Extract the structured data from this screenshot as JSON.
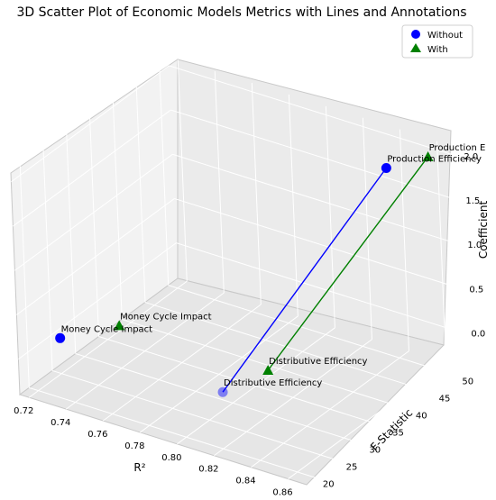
{
  "chart_data": {
    "type": "scatter",
    "title": "3D Scatter Plot of Economic Models Metrics with Lines and Annotations",
    "xlabel": "R²",
    "ylabel": "F-Statistic",
    "zlabel": "Coefficient",
    "xlim": [
      0.715,
      0.87
    ],
    "ylim": [
      18,
      52
    ],
    "zlim": [
      -0.4,
      2.1
    ],
    "x_ticks": [
      "0.72",
      "0.74",
      "0.76",
      "0.78",
      "0.80",
      "0.82",
      "0.84",
      "0.86"
    ],
    "y_ticks": [
      "20",
      "25",
      "30",
      "35",
      "40",
      "45",
      "50"
    ],
    "z_ticks": [
      "0.0",
      "0.5",
      "1.0",
      "1.5",
      "2.0"
    ],
    "grid": true,
    "legend_position": "top-right",
    "series": [
      {
        "name": "Without",
        "color": "#0000ff",
        "marker": "circle",
        "points": [
          {
            "label": "Money Cycle Impact",
            "x": 0.72,
            "y": 25,
            "z": 0.0
          },
          {
            "label": "Distributive Efficiency",
            "x": 0.8,
            "y": 28,
            "z": -0.2
          },
          {
            "label": "Production Efficiency",
            "x": 0.85,
            "y": 45,
            "z": 2.0
          }
        ],
        "lines": [
          [
            1,
            2
          ]
        ]
      },
      {
        "name": "With",
        "color": "#008000",
        "marker": "triangle",
        "points": [
          {
            "label": "Money Cycle Impact",
            "x": 0.75,
            "y": 26,
            "z": 0.3
          },
          {
            "label": "Distributive Efficiency",
            "x": 0.82,
            "y": 30,
            "z": 0.1
          },
          {
            "label": "Production E",
            "x": 0.86,
            "y": 50,
            "z": 2.0
          }
        ],
        "lines": [
          [
            1,
            2
          ]
        ]
      }
    ]
  }
}
